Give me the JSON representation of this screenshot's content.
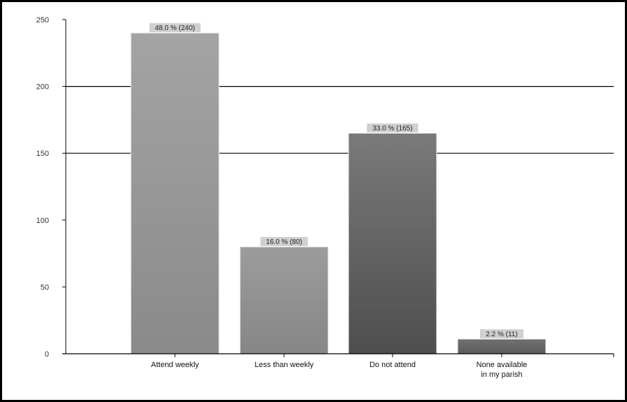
{
  "chart_data": {
    "type": "bar",
    "categories": [
      "Attend weekly",
      "Less than weekly",
      "Do not attend",
      "None available in my parish"
    ],
    "category_lines": [
      [
        "Attend weekly"
      ],
      [
        "Less than weekly"
      ],
      [
        "Do not attend"
      ],
      [
        "None available",
        "in my parish"
      ]
    ],
    "values": [
      240,
      80,
      165,
      11
    ],
    "data_labels": [
      "48.0 % (240)",
      "16.0 % (80)",
      "33.0 % (165)",
      "2.2 % (11)"
    ],
    "ylim": [
      0,
      250
    ],
    "yticks": [
      0,
      50,
      100,
      150,
      200,
      250
    ],
    "ytick_labels": [
      "0",
      "50",
      "100",
      "150",
      "200",
      "250"
    ],
    "grid": "horizontal",
    "title": "",
    "xlabel": "",
    "ylabel": "",
    "colors": {
      "bar_light": "#9a9a9a",
      "bar_dark": "#5a5a5a",
      "gridline": "#000000",
      "label_bg": "#d0d0d0"
    }
  }
}
